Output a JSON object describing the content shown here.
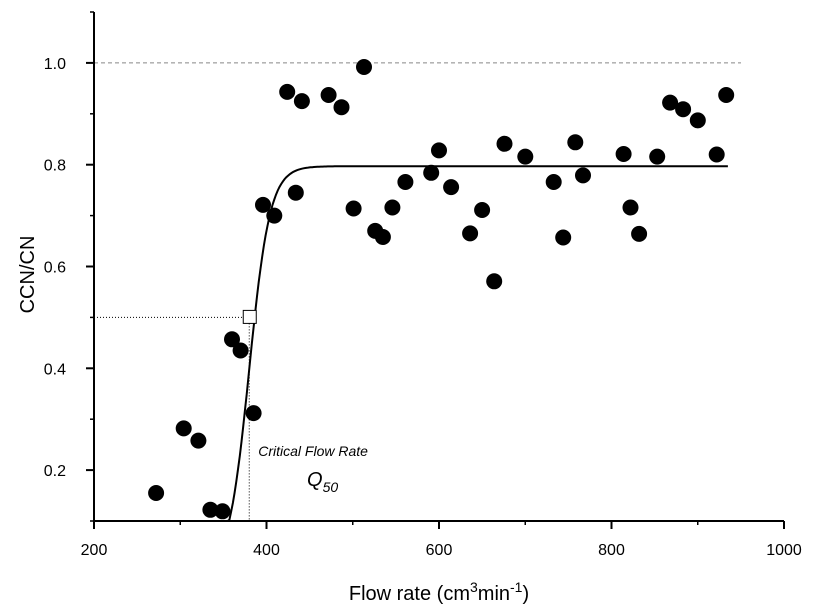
{
  "chart_data": {
    "type": "scatter",
    "title": "",
    "xlabel": {
      "prefix": "Flow rate (cm",
      "sup1": "3",
      "mid": "min",
      "sup2": "-1",
      "suffix": ")"
    },
    "ylabel": "CCN/CN",
    "xlim": [
      200,
      1000
    ],
    "ylim": [
      0.1,
      1.1
    ],
    "x_ticks": [
      200,
      400,
      600,
      800,
      1000
    ],
    "x_tick_labels": [
      "200",
      "400",
      "600",
      "800",
      "1000"
    ],
    "y_ticks": [
      0.2,
      0.4,
      0.6,
      0.8,
      1.0
    ],
    "y_tick_labels": [
      "0.2",
      "0.4",
      "0.6",
      "0.8",
      "1.0"
    ],
    "grid": false,
    "reference_line": {
      "y": 1.0,
      "style": "dashed"
    },
    "critical_flow_rate": {
      "x": 380,
      "y": 0.5,
      "label": "Critical Flow Rate",
      "symbol": "Q",
      "subscript": "50"
    },
    "fit_curve": {
      "plateau": 0.797,
      "midpoint": 380,
      "slope": 0.0833,
      "x_start": 305,
      "x_end": 935
    },
    "series": [
      {
        "values": [
          [
            272,
            0.155
          ],
          [
            304,
            0.282
          ],
          [
            321,
            0.258
          ],
          [
            335,
            0.122
          ],
          [
            349,
            0.119
          ],
          [
            360,
            0.457
          ],
          [
            370,
            0.435
          ],
          [
            385,
            0.312
          ],
          [
            396,
            0.721
          ],
          [
            409,
            0.7
          ],
          [
            424,
            0.943
          ],
          [
            434,
            0.745
          ],
          [
            441,
            0.925
          ],
          [
            472,
            0.937
          ],
          [
            487,
            0.913
          ],
          [
            501,
            0.714
          ],
          [
            513,
            0.992
          ],
          [
            526,
            0.67
          ],
          [
            535,
            0.658
          ],
          [
            546,
            0.716
          ],
          [
            561,
            0.766
          ],
          [
            591,
            0.784
          ],
          [
            600,
            0.828
          ],
          [
            614,
            0.756
          ],
          [
            636,
            0.665
          ],
          [
            650,
            0.711
          ],
          [
            664,
            0.571
          ],
          [
            676,
            0.841
          ],
          [
            700,
            0.816
          ],
          [
            733,
            0.766
          ],
          [
            744,
            0.657
          ],
          [
            758,
            0.844
          ],
          [
            767,
            0.779
          ],
          [
            814,
            0.821
          ],
          [
            822,
            0.716
          ],
          [
            832,
            0.664
          ],
          [
            853,
            0.816
          ],
          [
            868,
            0.922
          ],
          [
            883,
            0.909
          ],
          [
            900,
            0.887
          ],
          [
            922,
            0.82
          ],
          [
            933,
            0.937
          ]
        ]
      }
    ],
    "colors": {
      "points": "#000000",
      "curve": "#000000",
      "reference_line": "#888888"
    }
  }
}
